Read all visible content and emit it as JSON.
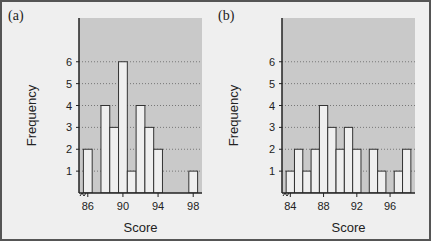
{
  "chart_data": [
    {
      "type": "histogram",
      "title": "(a)",
      "x_label": "Score",
      "y_label": "Frequency",
      "bins": [
        85.5,
        86.5,
        87.5,
        88.5,
        89.5,
        90.5,
        91.5,
        92.5,
        93.5,
        94.5,
        95.5,
        96.5,
        97.5,
        98.5
      ],
      "counts": [
        2,
        0,
        4,
        3,
        6,
        1,
        4,
        3,
        2,
        0,
        0,
        0,
        1
      ],
      "xlim": [
        85,
        99
      ],
      "xticks": [
        86,
        90,
        94,
        98
      ],
      "ylim": [
        0,
        8
      ],
      "yticks": [
        1,
        2,
        3,
        4,
        5,
        6
      ],
      "color": "#efefef",
      "grid": true
    },
    {
      "type": "histogram",
      "title": "(b)",
      "x_label": "Score",
      "y_label": "Frequency",
      "bins": [
        83.5,
        84.5,
        85.5,
        86.5,
        87.5,
        88.5,
        89.5,
        90.5,
        91.5,
        92.5,
        93.5,
        94.5,
        95.5,
        96.5,
        97.5,
        98.5
      ],
      "counts": [
        1,
        2,
        1,
        2,
        4,
        3,
        2,
        3,
        2,
        0,
        2,
        1,
        0,
        1,
        2
      ],
      "xlim": [
        83,
        99
      ],
      "xticks": [
        84,
        88,
        92,
        96
      ],
      "ylim": [
        0,
        8
      ],
      "yticks": [
        1,
        2,
        3,
        4,
        5,
        6
      ],
      "color": "#efefef",
      "grid": true
    }
  ]
}
